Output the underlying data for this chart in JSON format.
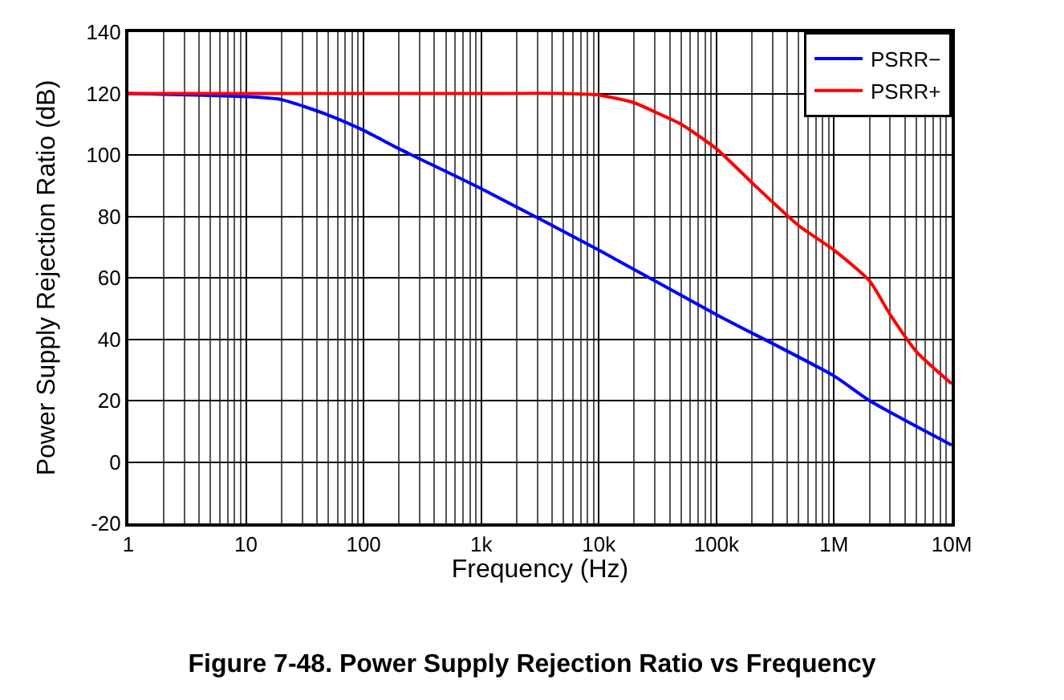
{
  "chart_data": {
    "type": "line",
    "title": "Figure 7-48. Power Supply Rejection Ratio vs Frequency",
    "xlabel": "Frequency (Hz)",
    "ylabel": "Power Supply Rejection Ratio (dB)",
    "log": "x",
    "grid": true,
    "legend": "top right",
    "line_style": "solid",
    "marker": "none",
    "xlim": [
      1,
      10000000
    ],
    "xticks": [
      1,
      10,
      100,
      {
        "value": 1000,
        "label": "1k"
      },
      {
        "value": 10000,
        "label": "10k"
      },
      {
        "value": 100000,
        "label": "100k"
      },
      {
        "value": 1000000,
        "label": "1M"
      },
      {
        "value": 10000000,
        "label": "10M"
      }
    ],
    "ylim": [
      -20,
      140
    ],
    "yticks": [
      -20,
      0,
      20,
      40,
      60,
      80,
      100,
      120,
      140
    ],
    "series": [
      {
        "name": "PSRR−",
        "color": "#0000ff",
        "x": [
          1,
          10,
          20,
          50,
          100,
          200,
          1000,
          10000,
          100000,
          1000000,
          2000000,
          10000000
        ],
        "values": [
          120,
          119,
          118,
          113,
          108,
          102,
          89,
          69,
          48,
          28,
          20,
          5.5
        ]
      },
      {
        "name": "PSRR+",
        "color": "#ff0000",
        "x": [
          1,
          1000,
          5000,
          10000,
          20000,
          30000,
          50000,
          100000,
          200000,
          500000,
          1000000,
          2000000,
          3000000,
          5000000,
          10000000
        ],
        "values": [
          120,
          120,
          120,
          119.5,
          117,
          114,
          110,
          102,
          91,
          77,
          69,
          59,
          48,
          36,
          25.5
        ]
      }
    ]
  }
}
